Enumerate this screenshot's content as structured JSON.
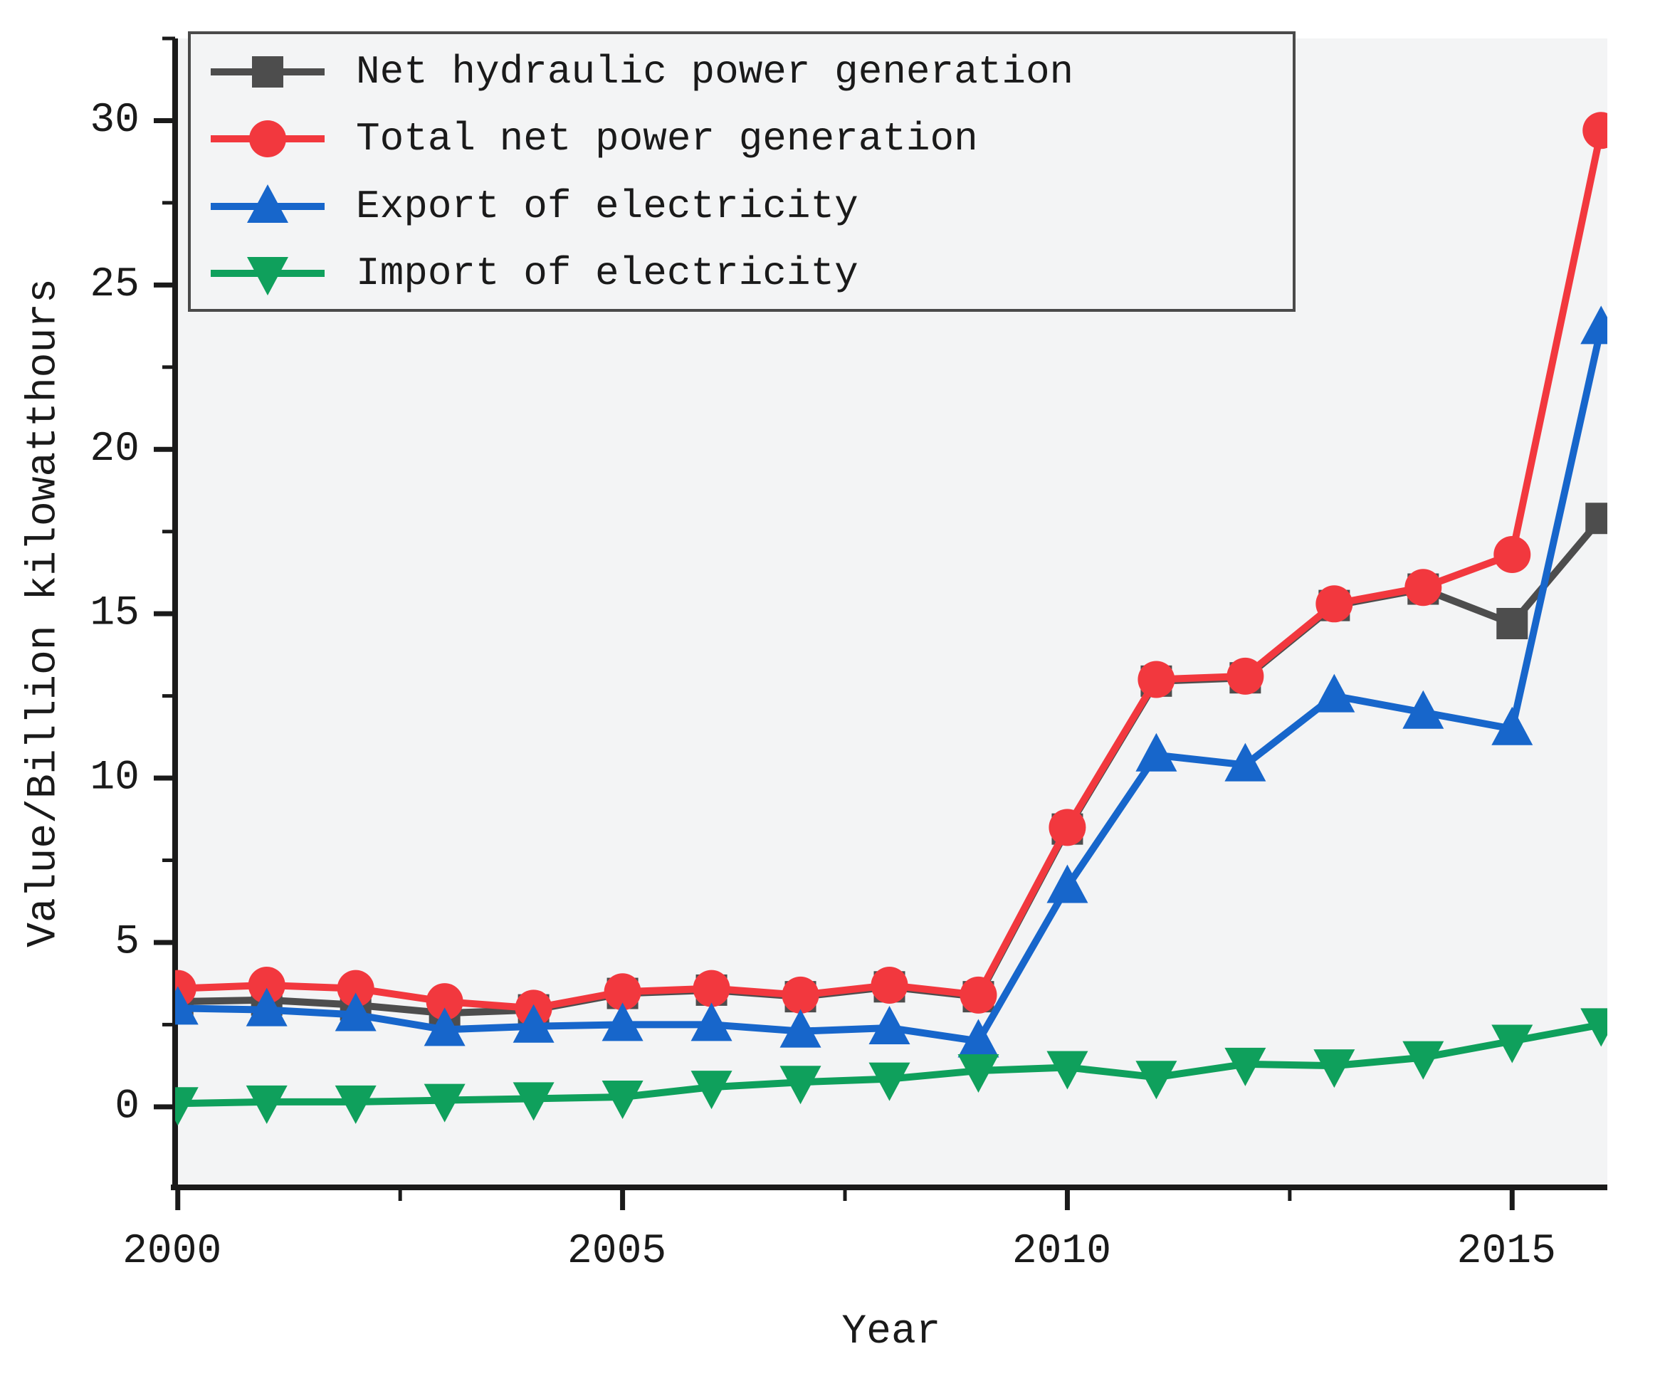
{
  "figure": {
    "background": "#ffffff",
    "plot_background": "#f3f4f5",
    "axis_color": "#1a1a1a",
    "legend_border_color": "#4a4a4a"
  },
  "chart_data": {
    "type": "line",
    "title": "",
    "xlabel": "Year",
    "ylabel": "Value/Billion kilowatthours",
    "x": [
      2000,
      2001,
      2002,
      2003,
      2004,
      2005,
      2006,
      2007,
      2008,
      2009,
      2010,
      2011,
      2012,
      2013,
      2014,
      2015,
      2016
    ],
    "xlim": [
      1999.97,
      2016.07
    ],
    "ylim": [
      -2.45,
      32.5
    ],
    "x_ticks_major": [
      2000,
      2005,
      2010,
      2015
    ],
    "x_ticks_minor": [
      2002.5,
      2007.5,
      2012.5
    ],
    "y_ticks_major": [
      0,
      5,
      10,
      15,
      20,
      25,
      30
    ],
    "y_ticks_minor": [
      2.5,
      7.5,
      12.5,
      17.5,
      22.5,
      27.5,
      32.5
    ],
    "grid": false,
    "legend_position": "upper-left",
    "series": [
      {
        "name": "Net hydraulic power generation",
        "color": "#4d4d4d",
        "marker": "square",
        "values": [
          3.2,
          3.25,
          3.1,
          2.85,
          2.95,
          3.45,
          3.55,
          3.35,
          3.65,
          3.35,
          8.45,
          12.95,
          13.05,
          15.25,
          15.75,
          14.7,
          17.9
        ]
      },
      {
        "name": "Total net power generation",
        "color": "#f2383e",
        "marker": "circle",
        "values": [
          3.6,
          3.7,
          3.6,
          3.2,
          3.0,
          3.5,
          3.6,
          3.4,
          3.7,
          3.4,
          8.5,
          13.0,
          13.1,
          15.3,
          15.8,
          16.8,
          29.7
        ]
      },
      {
        "name": "Export of electricity",
        "color": "#1766cb",
        "marker": "triangle-up",
        "values": [
          3.0,
          2.95,
          2.8,
          2.35,
          2.45,
          2.5,
          2.5,
          2.3,
          2.4,
          2.0,
          6.7,
          10.7,
          10.4,
          12.5,
          12.0,
          11.5,
          23.7
        ]
      },
      {
        "name": "Import of electricity",
        "color": "#0fa05c",
        "marker": "triangle-down",
        "values": [
          0.1,
          0.15,
          0.15,
          0.2,
          0.25,
          0.3,
          0.6,
          0.75,
          0.85,
          1.1,
          1.2,
          0.9,
          1.3,
          1.25,
          1.5,
          2.0,
          2.5
        ]
      }
    ]
  }
}
